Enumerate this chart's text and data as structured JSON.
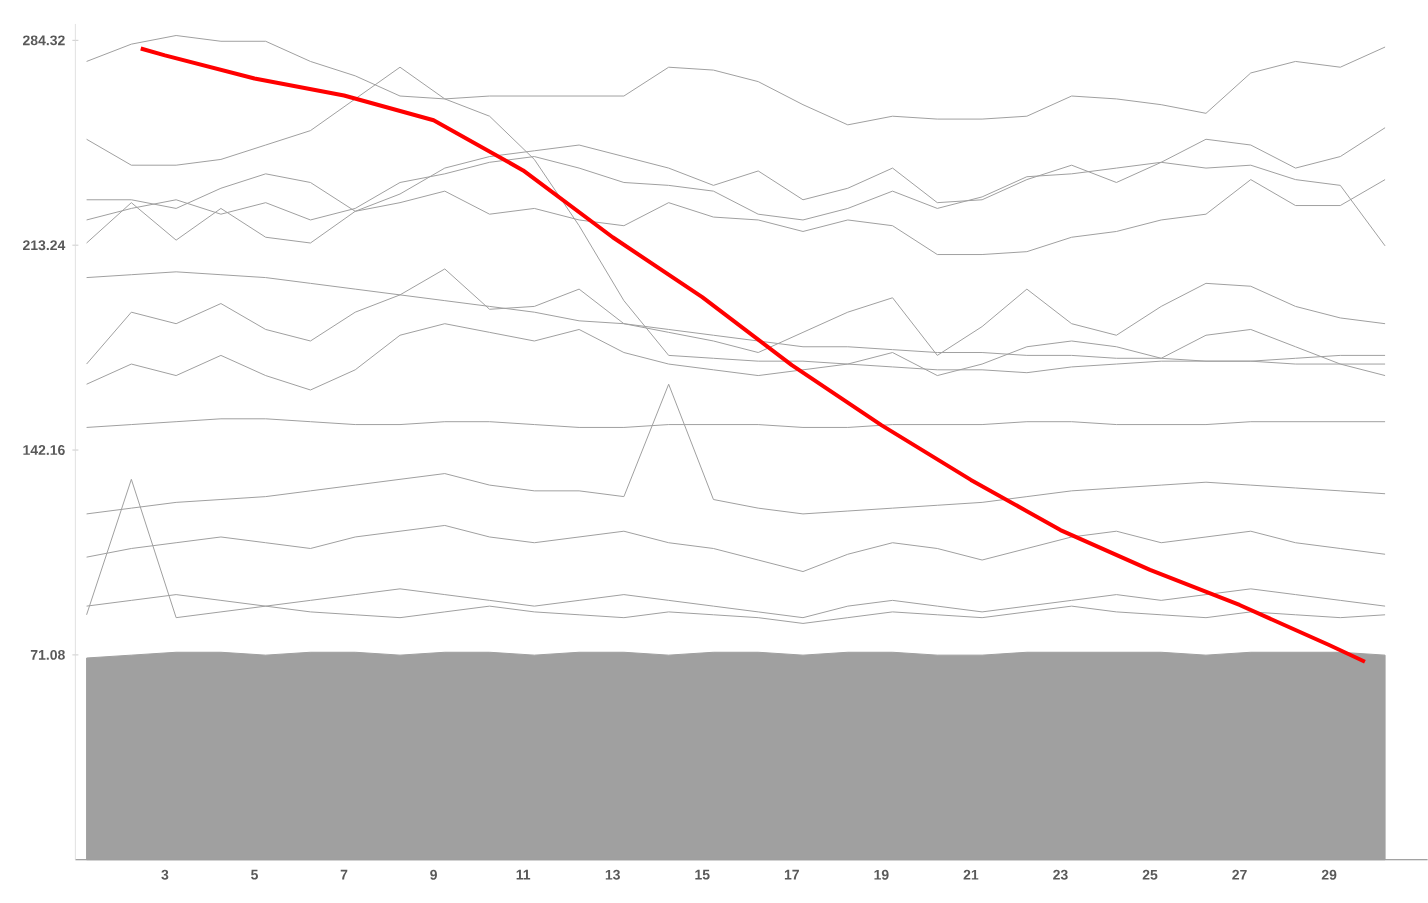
{
  "chart_data": {
    "type": "line",
    "x": [
      1.25,
      2.25,
      3.25,
      4.25,
      5.25,
      6.25,
      7.25,
      8.25,
      9.25,
      10.25,
      11.25,
      12.25,
      13.25,
      14.25,
      15.25,
      16.25,
      17.25,
      18.25,
      19.25,
      20.25,
      21.25,
      22.25,
      23.25,
      24.25,
      25.25,
      26.25,
      27.25,
      28.25,
      29.25,
      30.25
    ],
    "xlim": [
      1.0,
      31.2
    ],
    "ylim": [
      0,
      290
    ],
    "xticks": [
      3,
      5,
      7,
      9,
      11,
      13,
      15,
      17,
      19,
      21,
      23,
      25,
      27,
      29
    ],
    "yticks": [
      {
        "value": 71.08,
        "label": "71.08"
      },
      {
        "value": 142.16,
        "label": "142.16"
      },
      {
        "value": 213.24,
        "label": "213.24"
      },
      {
        "value": 284.32,
        "label": "284.32"
      }
    ],
    "grid": false,
    "series": [
      {
        "type": "area",
        "color": "#a0a0a0",
        "values": [
          70,
          71,
          72,
          72,
          71,
          72,
          72,
          71,
          72,
          72,
          71,
          72,
          72,
          71,
          72,
          72,
          71,
          72,
          72,
          71,
          71,
          72,
          72,
          72,
          72,
          71,
          72,
          72,
          72,
          71
        ]
      },
      {
        "color": "#a0a0a0",
        "values": [
          277,
          283,
          286,
          284,
          284,
          277,
          272,
          265,
          264,
          265,
          265,
          265,
          265,
          275,
          274,
          270,
          262,
          255,
          258,
          257,
          257,
          258,
          265,
          264,
          262,
          259,
          273,
          277,
          275,
          282
        ]
      },
      {
        "color": "#a0a0a0",
        "values": [
          250,
          241,
          241,
          243,
          248,
          253,
          264,
          275,
          264,
          258,
          243,
          220,
          194,
          175,
          174,
          173,
          173,
          172,
          171,
          170,
          170,
          169,
          171,
          172,
          173,
          173,
          173,
          174,
          175,
          175
        ]
      },
      {
        "color": "#a0a0a0",
        "values": [
          229,
          229,
          226,
          233,
          238,
          235,
          225,
          231,
          240,
          244,
          246,
          248,
          244,
          240,
          234,
          239,
          229,
          233,
          240,
          228,
          229,
          236,
          241,
          235,
          242,
          250,
          248,
          240,
          244,
          254
        ]
      },
      {
        "color": "#a0a0a0",
        "values": [
          222,
          226,
          229,
          224,
          228,
          222,
          226,
          235,
          238,
          242,
          244,
          240,
          235,
          234,
          232,
          224,
          222,
          226,
          232,
          226,
          230,
          237,
          238,
          240,
          242,
          240,
          241,
          236,
          234,
          213
        ]
      },
      {
        "color": "#a0a0a0",
        "values": [
          214,
          228,
          215,
          226,
          216,
          214,
          225,
          228,
          232,
          224,
          226,
          222,
          220,
          228,
          223,
          222,
          218,
          222,
          220,
          210,
          210,
          211,
          216,
          218,
          222,
          224,
          236,
          227,
          227,
          236
        ]
      },
      {
        "color": "#a0a0a0",
        "values": [
          202,
          203,
          204,
          203,
          202,
          200,
          198,
          196,
          194,
          192,
          190,
          187,
          186,
          184,
          182,
          180,
          178,
          178,
          177,
          176,
          176,
          175,
          175,
          174,
          174,
          173,
          173,
          172,
          172,
          172
        ]
      },
      {
        "color": "#a0a0a0",
        "values": [
          172,
          190,
          186,
          193,
          184,
          180,
          190,
          196,
          205,
          191,
          192,
          198,
          186,
          183,
          180,
          176,
          183,
          190,
          195,
          175,
          185,
          198,
          186,
          182,
          192,
          200,
          199,
          192,
          188,
          186
        ]
      },
      {
        "color": "#a0a0a0",
        "values": [
          165,
          172,
          168,
          175,
          168,
          163,
          170,
          182,
          186,
          183,
          180,
          184,
          176,
          172,
          170,
          168,
          170,
          172,
          176,
          168,
          172,
          178,
          180,
          178,
          174,
          182,
          184,
          178,
          172,
          168
        ]
      },
      {
        "color": "#a0a0a0",
        "values": [
          120,
          122,
          124,
          125,
          126,
          128,
          130,
          132,
          134,
          130,
          128,
          128,
          126,
          165,
          125,
          122,
          120,
          121,
          122,
          123,
          124,
          126,
          128,
          129,
          130,
          131,
          130,
          129,
          128,
          127
        ]
      },
      {
        "color": "#a0a0a0",
        "values": [
          150,
          151,
          152,
          153,
          153,
          152,
          151,
          151,
          152,
          152,
          151,
          150,
          150,
          151,
          151,
          151,
          150,
          150,
          151,
          151,
          151,
          152,
          152,
          151,
          151,
          151,
          152,
          152,
          152,
          152
        ]
      },
      {
        "color": "#a0a0a0",
        "values": [
          105,
          108,
          110,
          112,
          110,
          108,
          112,
          114,
          116,
          112,
          110,
          112,
          114,
          110,
          108,
          104,
          100,
          106,
          110,
          108,
          104,
          108,
          112,
          114,
          110,
          112,
          114,
          110,
          108,
          106
        ]
      },
      {
        "color": "#a0a0a0",
        "values": [
          88,
          90,
          92,
          90,
          88,
          90,
          92,
          94,
          92,
          90,
          88,
          90,
          92,
          90,
          88,
          86,
          84,
          88,
          90,
          88,
          86,
          88,
          90,
          92,
          90,
          92,
          94,
          92,
          90,
          88
        ]
      },
      {
        "color": "#a0a0a0",
        "values": [
          85,
          132,
          84,
          86,
          88,
          86,
          85,
          84,
          86,
          88,
          86,
          85,
          84,
          86,
          85,
          84,
          82,
          84,
          86,
          85,
          84,
          86,
          88,
          86,
          85,
          84,
          86,
          85,
          84,
          85
        ]
      },
      {
        "color": "#ff0000",
        "x": [
          2.46,
          3,
          5,
          7,
          9,
          11,
          13,
          15,
          17,
          19,
          21,
          23,
          25,
          27,
          29,
          29.8
        ],
        "values": [
          281.5,
          279.1,
          271.1,
          265.2,
          256.6,
          239.2,
          216.0,
          195.2,
          171.6,
          150.8,
          131.8,
          114.4,
          100.6,
          88.4,
          74.5,
          68.7
        ]
      }
    ]
  }
}
